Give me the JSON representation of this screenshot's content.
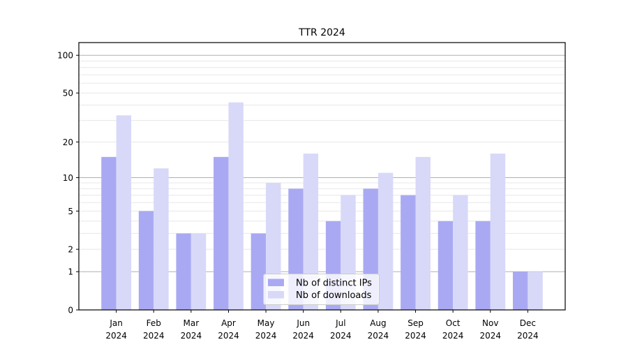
{
  "title": "TTR 2024",
  "chart_data": {
    "type": "bar",
    "title": "TTR 2024",
    "categories": [
      "Jan 2024",
      "Feb 2024",
      "Mar 2024",
      "Apr 2024",
      "May 2024",
      "Jun 2024",
      "Jul 2024",
      "Aug 2024",
      "Sep 2024",
      "Oct 2024",
      "Nov 2024",
      "Dec 2024"
    ],
    "series": [
      {
        "name": "Nb of distinct IPs",
        "color": "#a9a9f3",
        "values": [
          15,
          5,
          3,
          15,
          3,
          8,
          4,
          8,
          7,
          4,
          4,
          1
        ]
      },
      {
        "name": "Nb of downloads",
        "color": "#d8d8f9",
        "values": [
          33,
          12,
          3,
          42,
          9,
          16,
          7,
          11,
          15,
          7,
          16,
          1
        ]
      }
    ],
    "xlabel": "",
    "ylabel": "",
    "yscale": "log1p",
    "ylim": [
      0,
      126
    ],
    "yticks": [
      0,
      1,
      2,
      5,
      10,
      20,
      50,
      100
    ],
    "major_gridlines": [
      1,
      10,
      100
    ],
    "minor_gridlines": [
      2,
      3,
      4,
      5,
      6,
      7,
      8,
      9,
      20,
      30,
      40,
      50,
      60,
      70,
      80,
      90
    ],
    "grid": true,
    "legend_position": "lower-center",
    "colors": {
      "background": "#ffffff",
      "spine": "#000000",
      "major_grid": "#b0b0b0",
      "minor_grid": "#e7e7e7",
      "legend_border": "#cccccc",
      "legend_background": "rgba(255,255,255,0.8)"
    }
  }
}
